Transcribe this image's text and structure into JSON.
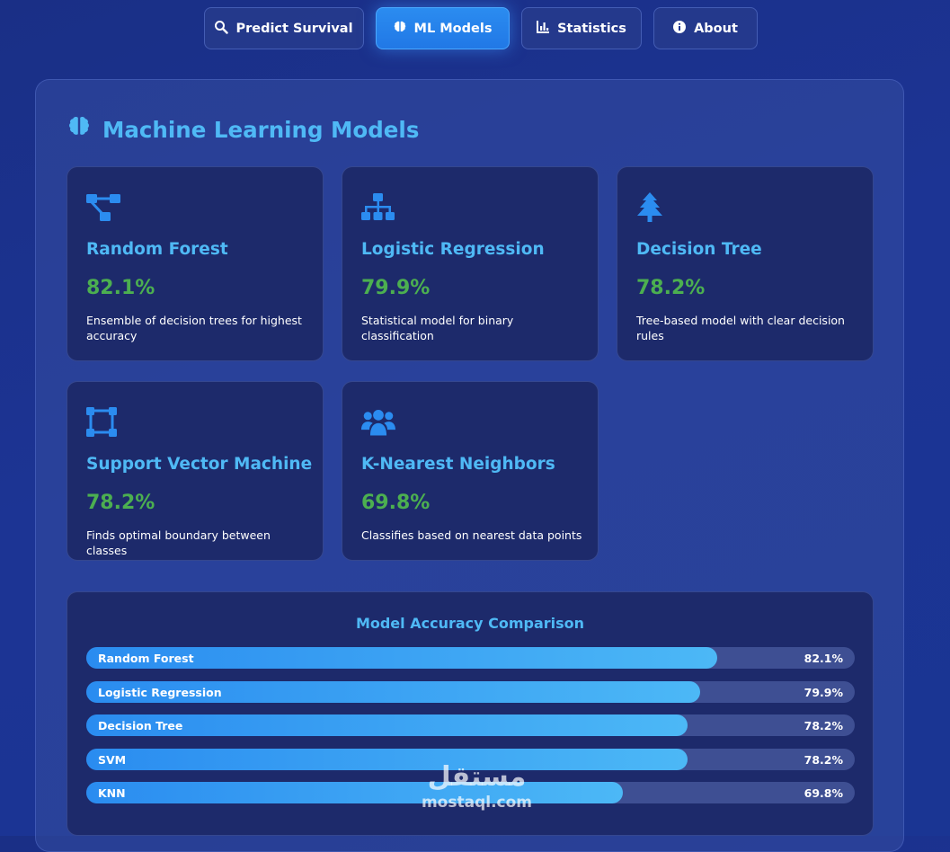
{
  "nav": {
    "items": [
      {
        "label": "Predict Survival",
        "icon": "search-icon",
        "active": false
      },
      {
        "label": "ML Models",
        "icon": "brain-icon",
        "active": true
      },
      {
        "label": "Statistics",
        "icon": "bar-chart-icon",
        "active": false
      },
      {
        "label": "About",
        "icon": "info-circle-icon",
        "active": false
      }
    ]
  },
  "page": {
    "title": "Machine Learning Models",
    "title_icon": "brain-icon"
  },
  "models": [
    {
      "name": "Random Forest",
      "accuracy": "82.1%",
      "description": "Ensemble of decision trees for highest accuracy",
      "icon": "project-diagram-icon"
    },
    {
      "name": "Logistic Regression",
      "accuracy": "79.9%",
      "description": "Statistical model for binary classification",
      "icon": "sitemap-icon"
    },
    {
      "name": "Decision Tree",
      "accuracy": "78.2%",
      "description": "Tree-based model with clear decision rules",
      "icon": "tree-icon"
    },
    {
      "name": "Support Vector Machine",
      "accuracy": "78.2%",
      "description": "Finds optimal boundary between classes",
      "icon": "vector-square-icon"
    },
    {
      "name": "K-Nearest Neighbors",
      "accuracy": "69.8%",
      "description": "Classifies based on nearest data points",
      "icon": "users-icon"
    }
  ],
  "chart_data": {
    "type": "bar",
    "title": "Model Accuracy Comparison",
    "categories": [
      "Random Forest",
      "Logistic Regression",
      "Decision Tree",
      "SVM",
      "KNN"
    ],
    "values": [
      82.1,
      79.9,
      78.2,
      78.2,
      69.8
    ],
    "value_labels": [
      "82.1%",
      "79.9%",
      "78.2%",
      "78.2%",
      "69.8%"
    ],
    "ylim": [
      0,
      100
    ],
    "orientation": "horizontal"
  },
  "watermark": {
    "arabic": "مستقل",
    "latin": "mostaql.com"
  },
  "colors": {
    "accent": "#4fb9f5",
    "accuracy": "#4caf50",
    "active_tab": "#2178e6"
  }
}
